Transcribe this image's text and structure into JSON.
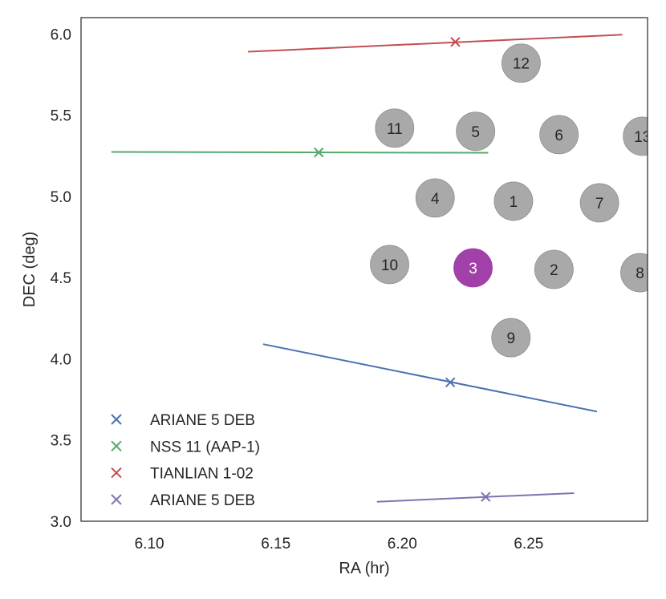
{
  "chart_data": {
    "type": "scatter",
    "xlabel": "RA (hr)",
    "ylabel": "DEC (deg)",
    "xlim": [
      6.073,
      6.297
    ],
    "ylim": [
      3.0,
      6.1
    ],
    "xticks": [
      "6.10",
      "6.15",
      "6.20",
      "6.25"
    ],
    "xtick_values": [
      6.1,
      6.15,
      6.2,
      6.25
    ],
    "yticks": [
      "3.0",
      "3.5",
      "4.0",
      "4.5",
      "5.0",
      "5.5",
      "6.0"
    ],
    "ytick_values": [
      3.0,
      3.5,
      4.0,
      4.5,
      5.0,
      5.5,
      6.0
    ],
    "grid": false,
    "legend_position": "bottom-left",
    "fields": [
      {
        "label": "1",
        "ra": 6.244,
        "dec": 4.97,
        "highlighted": false
      },
      {
        "label": "2",
        "ra": 6.26,
        "dec": 4.55,
        "highlighted": false
      },
      {
        "label": "3",
        "ra": 6.228,
        "dec": 4.56,
        "highlighted": true
      },
      {
        "label": "4",
        "ra": 6.213,
        "dec": 4.99,
        "highlighted": false
      },
      {
        "label": "5",
        "ra": 6.229,
        "dec": 5.4,
        "highlighted": false
      },
      {
        "label": "6",
        "ra": 6.262,
        "dec": 5.38,
        "highlighted": false
      },
      {
        "label": "7",
        "ra": 6.278,
        "dec": 4.96,
        "highlighted": false
      },
      {
        "label": "8",
        "ra": 6.294,
        "dec": 4.53,
        "highlighted": false
      },
      {
        "label": "9",
        "ra": 6.243,
        "dec": 4.13,
        "highlighted": false
      },
      {
        "label": "10",
        "ra": 6.195,
        "dec": 4.58,
        "highlighted": false
      },
      {
        "label": "11",
        "ra": 6.197,
        "dec": 5.42,
        "highlighted": false
      },
      {
        "label": "12",
        "ra": 6.247,
        "dec": 5.82,
        "highlighted": false
      },
      {
        "label": "13",
        "ra": 6.295,
        "dec": 5.37,
        "highlighted": false
      }
    ],
    "field_color": "#a9a9a9",
    "field_highlight_color": "#a040a8",
    "series": [
      {
        "name": "ARIANE 5 DEB",
        "color": "#4c72b0",
        "marker": {
          "ra": 6.219,
          "dec": 3.855
        },
        "track": [
          [
            6.145,
            4.09
          ],
          [
            6.277,
            3.675
          ]
        ]
      },
      {
        "name": "NSS 11 (AAP-1)",
        "color": "#55a868",
        "marker": {
          "ra": 6.167,
          "dec": 5.27
        },
        "track": [
          [
            6.085,
            5.273
          ],
          [
            6.234,
            5.268
          ]
        ]
      },
      {
        "name": "TIANLIAN 1-02",
        "color": "#c44e52",
        "marker": {
          "ra": 6.221,
          "dec": 5.95
        },
        "track": [
          [
            6.139,
            5.89
          ],
          [
            6.287,
            5.995
          ]
        ]
      },
      {
        "name": "ARIANE 5 DEB",
        "color": "#8172b2",
        "marker": {
          "ra": 6.233,
          "dec": 3.15
        },
        "track": [
          [
            6.19,
            3.12
          ],
          [
            6.268,
            3.173
          ]
        ]
      }
    ]
  }
}
